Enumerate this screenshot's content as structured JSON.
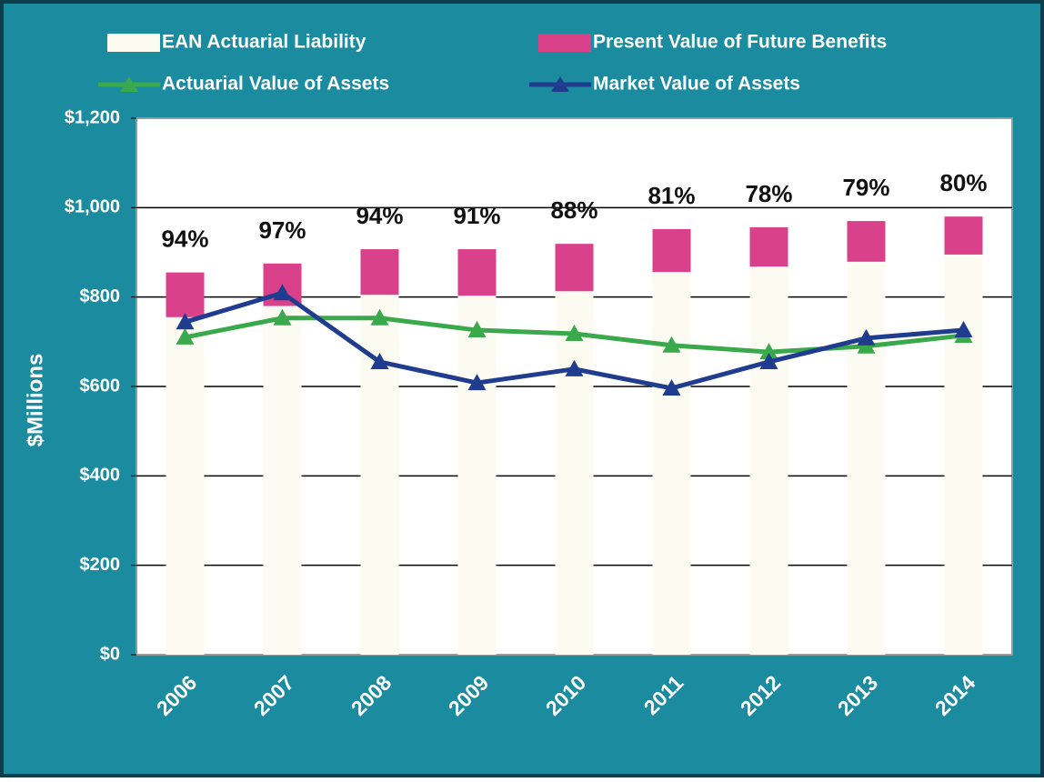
{
  "chart_data": {
    "type": "combo",
    "y_axis_label": "$Millions",
    "categories": [
      "2006",
      "2007",
      "2008",
      "2009",
      "2010",
      "2011",
      "2012",
      "2013",
      "2014"
    ],
    "series": [
      {
        "name": "EAN Actuarial Liability",
        "type": "bar",
        "color": "#fbfbf2",
        "values": [
          755,
          780,
          805,
          803,
          813,
          856,
          868,
          879,
          895
        ]
      },
      {
        "name": "Present Value of Future Benefits",
        "type": "range",
        "color": "#d9418a",
        "values": [
          855,
          875,
          907,
          907,
          919,
          952,
          956,
          970,
          980
        ]
      },
      {
        "name": "Actuarial Value of Assets",
        "type": "line",
        "color": "#3aa94b",
        "values": [
          710,
          753,
          753,
          726,
          718,
          692,
          677,
          690,
          714
        ]
      },
      {
        "name": "Market Value of Assets",
        "type": "line",
        "color": "#1f3c8e",
        "values": [
          744,
          809,
          655,
          608,
          639,
          596,
          655,
          708,
          726
        ]
      }
    ],
    "annotations": [
      "94%",
      "97%",
      "94%",
      "91%",
      "88%",
      "81%",
      "78%",
      "79%",
      "80%"
    ],
    "ylim": [
      0,
      1200
    ],
    "yticks": [
      {
        "value": 0,
        "label": "$0"
      },
      {
        "value": 200,
        "label": "$200"
      },
      {
        "value": 400,
        "label": "$400"
      },
      {
        "value": 600,
        "label": "$600"
      },
      {
        "value": 800,
        "label": "$800"
      },
      {
        "value": 1000,
        "label": "$1,000"
      },
      {
        "value": 1200,
        "label": "$1,200"
      }
    ],
    "grid": true,
    "legend": "top"
  }
}
